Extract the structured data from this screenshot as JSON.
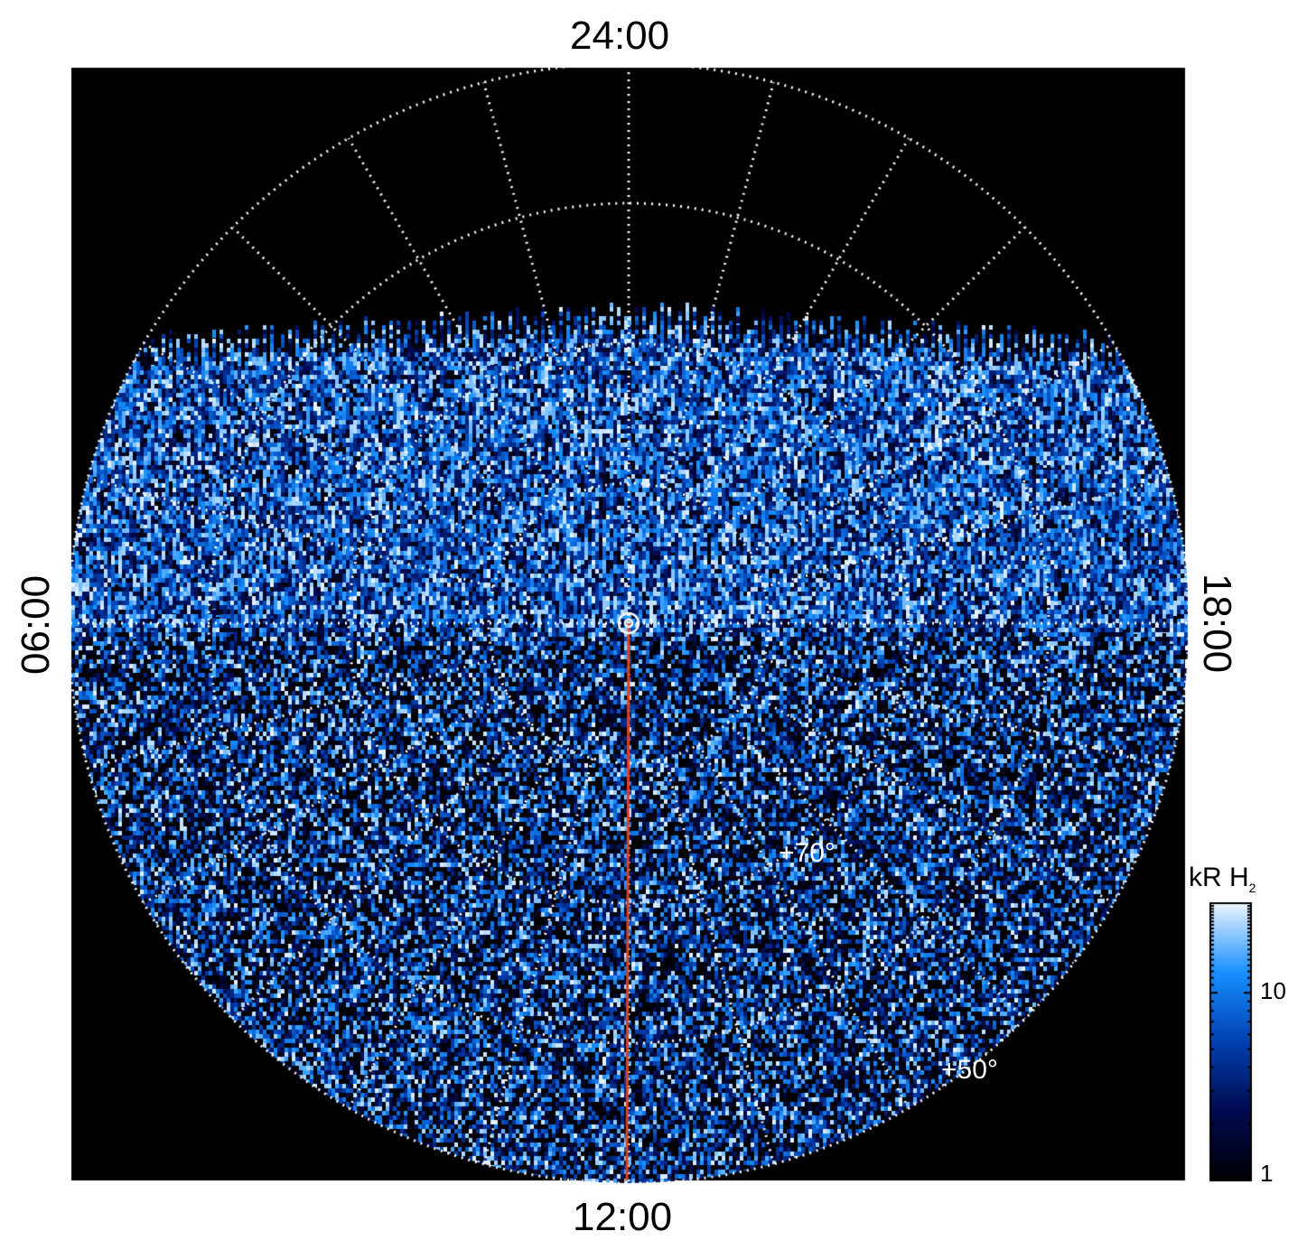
{
  "chart_data": {
    "type": "heatmap",
    "projection": "polar",
    "local_time_labels": {
      "top": "24:00",
      "bottom": "12:00",
      "left": "06:00",
      "right": "18:00"
    },
    "latitude_labels": [
      "+70°",
      "+50°"
    ],
    "latitude_circles": [
      80,
      70,
      60,
      50
    ],
    "local_time_meridian_step_hours": 1,
    "highlight_meridian": {
      "local_time": "12:00",
      "color": "#e0401a"
    },
    "colorbar": {
      "title": "kR H",
      "title_subscript": "2",
      "scale": "log",
      "range": [
        1,
        30
      ],
      "ticks": [
        {
          "value": 1,
          "label": "1"
        },
        {
          "value": 10,
          "label": "10"
        }
      ],
      "colors": [
        "#000000",
        "#000a50",
        "#0040b0",
        "#1890ff",
        "#eaf5ff"
      ]
    },
    "background": "#000000",
    "grid": true
  }
}
